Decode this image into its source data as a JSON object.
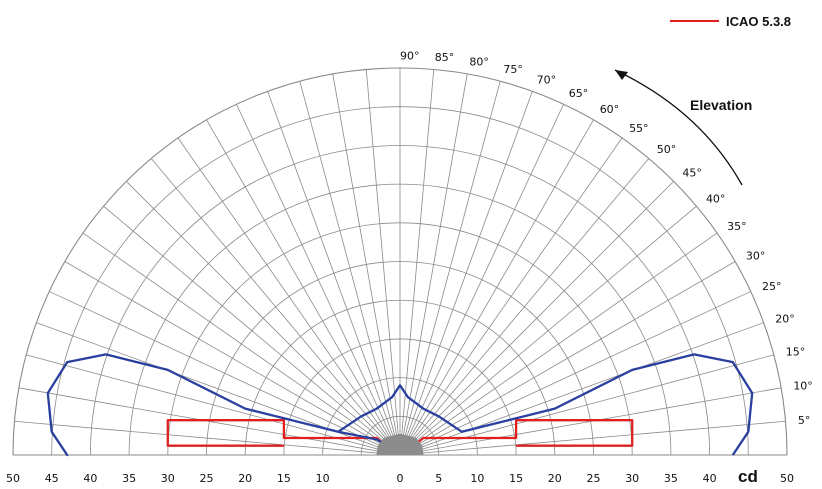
{
  "chart_data": {
    "type": "polar",
    "radial_unit": "cd",
    "radial_ticks": [
      0,
      5,
      10,
      15,
      20,
      25,
      30,
      35,
      40,
      45,
      50
    ],
    "x_tick_labels": [
      "50",
      "45",
      "40",
      "35",
      "30",
      "25",
      "20",
      "15",
      "10",
      "0",
      "5",
      "10",
      "15",
      "20",
      "25",
      "30",
      "35",
      "40",
      "50"
    ],
    "angle_ticks": [
      "5°",
      "10°",
      "15°",
      "20°",
      "25°",
      "30°",
      "35°",
      "40°",
      "45°",
      "50°",
      "55°",
      "60°",
      "65°",
      "70°",
      "75°",
      "80°",
      "85°",
      "90°"
    ],
    "angle_annotation": "Elevation",
    "grid": true,
    "legend": {
      "position": "top-right",
      "entries": [
        {
          "name": "ICAO 5.3.8",
          "color": "#e02020"
        }
      ]
    },
    "series": [
      {
        "name": "ICAO 5.3.8",
        "color": "#e02020",
        "points": [
          [
            -15,
            1.2
          ],
          [
            -30,
            1.2
          ],
          [
            -30,
            4.5
          ],
          [
            -15,
            4.5
          ],
          [
            -15,
            2.2
          ],
          [
            -3,
            2.2
          ],
          [
            -1,
            0.5
          ],
          [
            1,
            0.5
          ],
          [
            3,
            2.2
          ],
          [
            15,
            2.2
          ],
          [
            15,
            4.5
          ],
          [
            30,
            4.5
          ],
          [
            30,
            1.2
          ],
          [
            15,
            1.2
          ]
        ]
      },
      {
        "name": "",
        "color": "#2a3fa0",
        "points": [
          [
            0,
            0.3
          ],
          [
            -3,
            2
          ],
          [
            -8,
            3
          ],
          [
            -20,
            6
          ],
          [
            -30,
            11
          ],
          [
            -38,
            13
          ],
          [
            -43,
            12
          ],
          [
            -45.5,
            8
          ],
          [
            -45,
            3
          ],
          [
            -43,
            0
          ],
          [
            -45,
            3
          ],
          [
            -45.5,
            8
          ],
          [
            -43,
            12
          ],
          [
            -38,
            13
          ],
          [
            -30,
            11
          ],
          [
            -20,
            6
          ],
          [
            -8,
            3
          ],
          [
            -5,
            5
          ],
          [
            -3,
            6
          ],
          [
            -1,
            7.5
          ],
          [
            0,
            9
          ],
          [
            1,
            7.5
          ],
          [
            3,
            6
          ],
          [
            5,
            5
          ],
          [
            8,
            3
          ],
          [
            20,
            6
          ],
          [
            30,
            11
          ],
          [
            38,
            13
          ],
          [
            43,
            12
          ],
          [
            45.5,
            8
          ],
          [
            45,
            3
          ],
          [
            43,
            0
          ]
        ]
      },
      {
        "name": "",
        "color": "#888888",
        "points": [
          [
            -3,
            0
          ],
          [
            -2.8,
            1.2
          ],
          [
            -2,
            2.2
          ],
          [
            0,
            2.7
          ],
          [
            2,
            2.2
          ],
          [
            2.8,
            1.2
          ],
          [
            3,
            0
          ]
        ]
      }
    ]
  }
}
